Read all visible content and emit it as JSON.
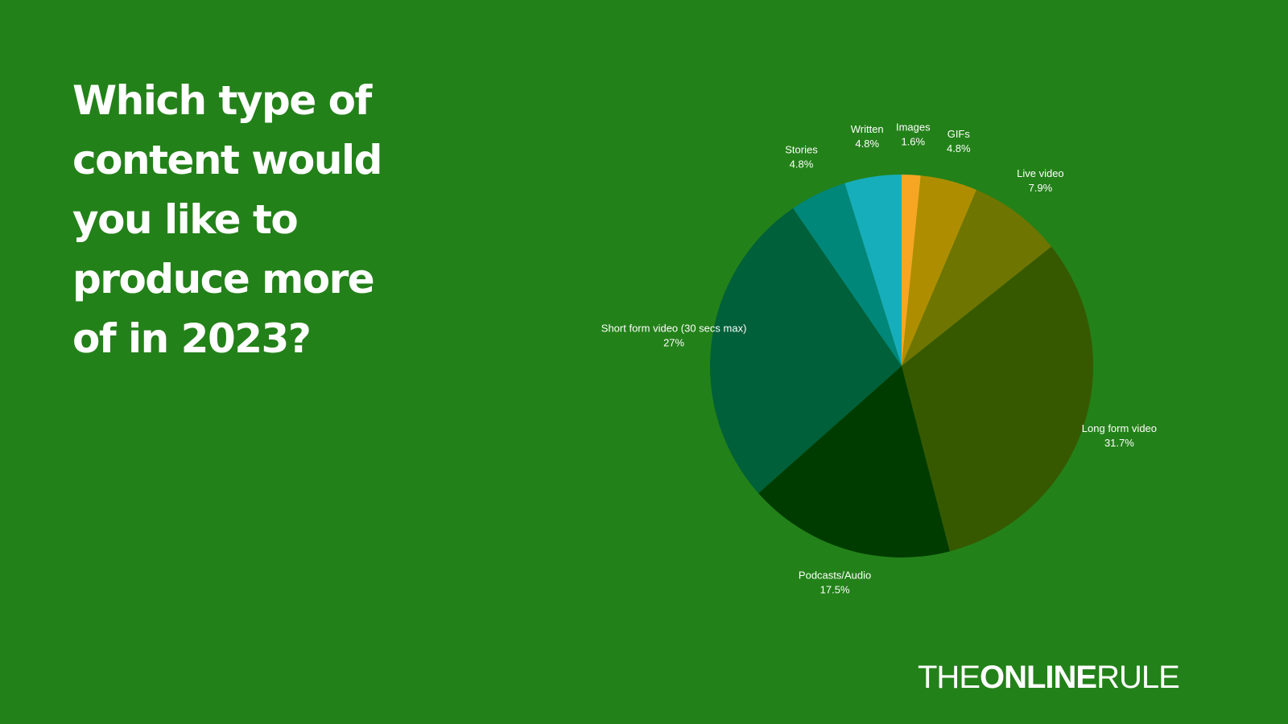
{
  "title": "Which type of content would you like to produce more of in 2023?",
  "logo": {
    "part1": "THE",
    "part2": "ONLINE",
    "part3": "RULE"
  },
  "chart_data": {
    "type": "pie",
    "title": "",
    "start": "top",
    "direction": "clockwise",
    "slices": [
      {
        "label": "Images",
        "value": 1.6,
        "display": "1.6%",
        "color": "#f6a623"
      },
      {
        "label": "GIFs",
        "value": 4.8,
        "display": "4.8%",
        "color": "#ae8e00"
      },
      {
        "label": "Live video",
        "value": 7.9,
        "display": "7.9%",
        "color": "#6e7500"
      },
      {
        "label": "Long form video",
        "value": 31.7,
        "display": "31.7%",
        "color": "#365900"
      },
      {
        "label": "Podcasts/Audio",
        "value": 17.5,
        "display": "17.5%",
        "color": "#003c00"
      },
      {
        "label": "Short form video (30 secs max)",
        "value": 27,
        "display": "27%",
        "color": "#00603a"
      },
      {
        "label": "Stories",
        "value": 4.8,
        "display": "4.8%",
        "color": "#00877a"
      },
      {
        "label": "Written",
        "value": 4.8,
        "display": "4.8%",
        "color": "#17aebb"
      }
    ]
  }
}
